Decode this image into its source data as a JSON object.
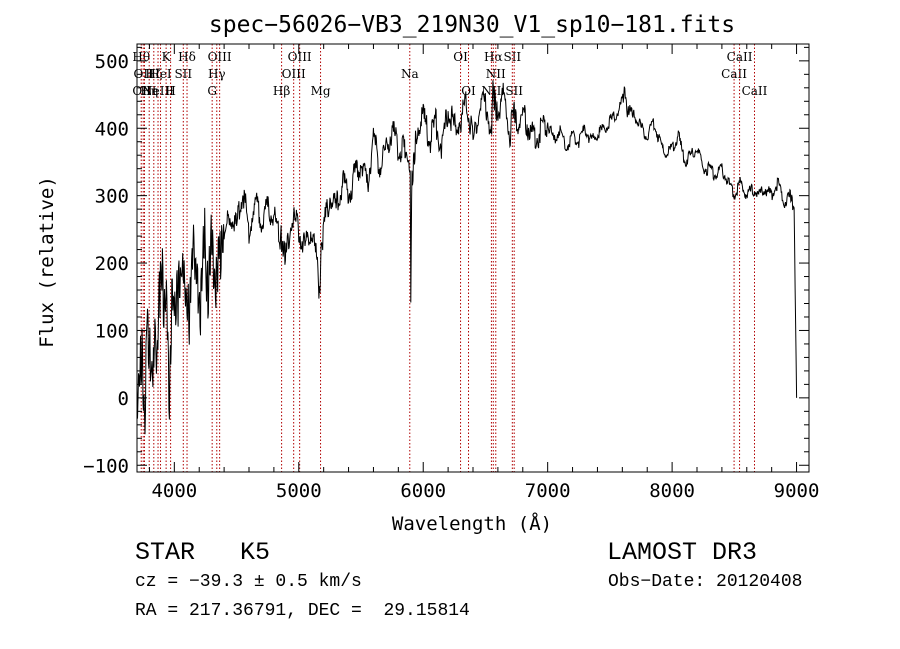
{
  "chart_data": {
    "type": "line",
    "title": "spec−56026−VB3_219N30_V1_sp10−181.fits",
    "xlabel": "Wavelength (Å)",
    "ylabel": "Flux (relative)",
    "xlim": [
      3700,
      9100
    ],
    "ylim": [
      -110,
      525
    ],
    "xticks": [
      4000,
      5000,
      6000,
      7000,
      8000,
      9000
    ],
    "yticks": [
      -100,
      0,
      100,
      200,
      300,
      400,
      500
    ],
    "series": [
      {
        "name": "flux",
        "x": [
          3700,
          3720,
          3740,
          3760,
          3780,
          3800,
          3820,
          3840,
          3860,
          3880,
          3900,
          3920,
          3940,
          3960,
          3980,
          4000,
          4030,
          4060,
          4090,
          4120,
          4150,
          4180,
          4210,
          4240,
          4270,
          4300,
          4330,
          4360,
          4400,
          4450,
          4500,
          4550,
          4600,
          4650,
          4700,
          4750,
          4800,
          4850,
          4870,
          4900,
          4950,
          5000,
          5050,
          5100,
          5150,
          5170,
          5180,
          5200,
          5250,
          5300,
          5350,
          5400,
          5450,
          5500,
          5550,
          5600,
          5650,
          5700,
          5750,
          5800,
          5850,
          5880,
          5895,
          5900,
          5910,
          5950,
          6000,
          6050,
          6100,
          6150,
          6200,
          6250,
          6300,
          6350,
          6400,
          6450,
          6500,
          6550,
          6560,
          6600,
          6650,
          6700,
          6720,
          6750,
          6800,
          6850,
          6900,
          6950,
          7000,
          7050,
          7100,
          7150,
          7200,
          7250,
          7300,
          7350,
          7400,
          7450,
          7500,
          7550,
          7600,
          7620,
          7640,
          7660,
          7700,
          7750,
          7800,
          7850,
          7900,
          7950,
          8000,
          8050,
          8100,
          8150,
          8200,
          8250,
          8300,
          8350,
          8400,
          8450,
          8500,
          8550,
          8600,
          8650,
          8700,
          8750,
          8800,
          8850,
          8900,
          8950,
          8980,
          9000
        ],
        "y": [
          -20,
          40,
          60,
          -50,
          120,
          80,
          30,
          90,
          60,
          150,
          200,
          120,
          170,
          -30,
          160,
          130,
          150,
          190,
          160,
          120,
          240,
          170,
          120,
          250,
          150,
          240,
          170,
          210,
          240,
          270,
          250,
          310,
          250,
          290,
          260,
          280,
          270,
          240,
          230,
          210,
          270,
          250,
          220,
          250,
          200,
          140,
          220,
          250,
          300,
          280,
          320,
          300,
          330,
          350,
          310,
          390,
          340,
          370,
          400,
          370,
          370,
          350,
          330,
          160,
          330,
          400,
          420,
          380,
          410,
          370,
          430,
          400,
          410,
          440,
          380,
          430,
          440,
          390,
          460,
          420,
          450,
          390,
          440,
          400,
          420,
          400,
          380,
          400,
          410,
          380,
          400,
          370,
          390,
          380,
          400,
          380,
          390,
          400,
          410,
          420,
          440,
          460,
          420,
          430,
          420,
          400,
          390,
          410,
          380,
          360,
          370,
          390,
          350,
          360,
          370,
          340,
          340,
          330,
          340,
          320,
          300,
          320,
          300,
          310,
          300,
          310,
          300,
          320,
          290,
          300,
          280,
          0
        ]
      }
    ],
    "lines": [
      {
        "wl": 3734,
        "label": "Hθ",
        "row": 0
      },
      {
        "wl": 3750,
        "label": "OII",
        "row": 1
      },
      {
        "wl": 3760,
        "label": "OIII",
        "row": 2
      },
      {
        "wl": 3798,
        "label": "Hη",
        "row": 2
      },
      {
        "wl": 3835,
        "label": "Hζ",
        "row": 1
      },
      {
        "wl": 3869,
        "label": "NeIII",
        "row": 2
      },
      {
        "wl": 3889,
        "label": "HeI",
        "row": 1
      },
      {
        "wl": 3934,
        "label": "K",
        "row": 0
      },
      {
        "wl": 3970,
        "label": "H",
        "row": 2
      },
      {
        "wl": 4072,
        "label": "SII",
        "row": 1
      },
      {
        "wl": 4102,
        "label": "Hδ",
        "row": 0
      },
      {
        "wl": 4304,
        "label": "G",
        "row": 2
      },
      {
        "wl": 4341,
        "label": "Hγ",
        "row": 1
      },
      {
        "wl": 4364,
        "label": "OIII",
        "row": 0
      },
      {
        "wl": 4862,
        "label": "Hβ",
        "row": 2
      },
      {
        "wl": 4959,
        "label": "OIII",
        "row": 1
      },
      {
        "wl": 5007,
        "label": "OIII",
        "row": 0
      },
      {
        "wl": 5175,
        "label": "Mg",
        "row": 2
      },
      {
        "wl": 5892,
        "label": "Na",
        "row": 1
      },
      {
        "wl": 6300,
        "label": "OI",
        "row": 0
      },
      {
        "wl": 6364,
        "label": "OI",
        "row": 2
      },
      {
        "wl": 6548,
        "label": "NII",
        "row": 2
      },
      {
        "wl": 6563,
        "label": "Hα",
        "row": 0
      },
      {
        "wl": 6583,
        "label": "NII",
        "row": 1
      },
      {
        "wl": 6716,
        "label": "SII",
        "row": 0
      },
      {
        "wl": 6731,
        "label": "SII",
        "row": 2
      },
      {
        "wl": 8498,
        "label": "CaII",
        "row": 1
      },
      {
        "wl": 8542,
        "label": "CaII",
        "row": 0
      },
      {
        "wl": 8662,
        "label": "CaII",
        "row": 2
      }
    ]
  },
  "footer": {
    "class_label": "STAR",
    "subclass": "K5",
    "survey": "LAMOST DR3",
    "cz": "cz = −39.3 ± 0.5 km/s",
    "obs_date": "Obs−Date: 20120408",
    "radec": "RA = 217.36791, DEC =  29.15814"
  }
}
